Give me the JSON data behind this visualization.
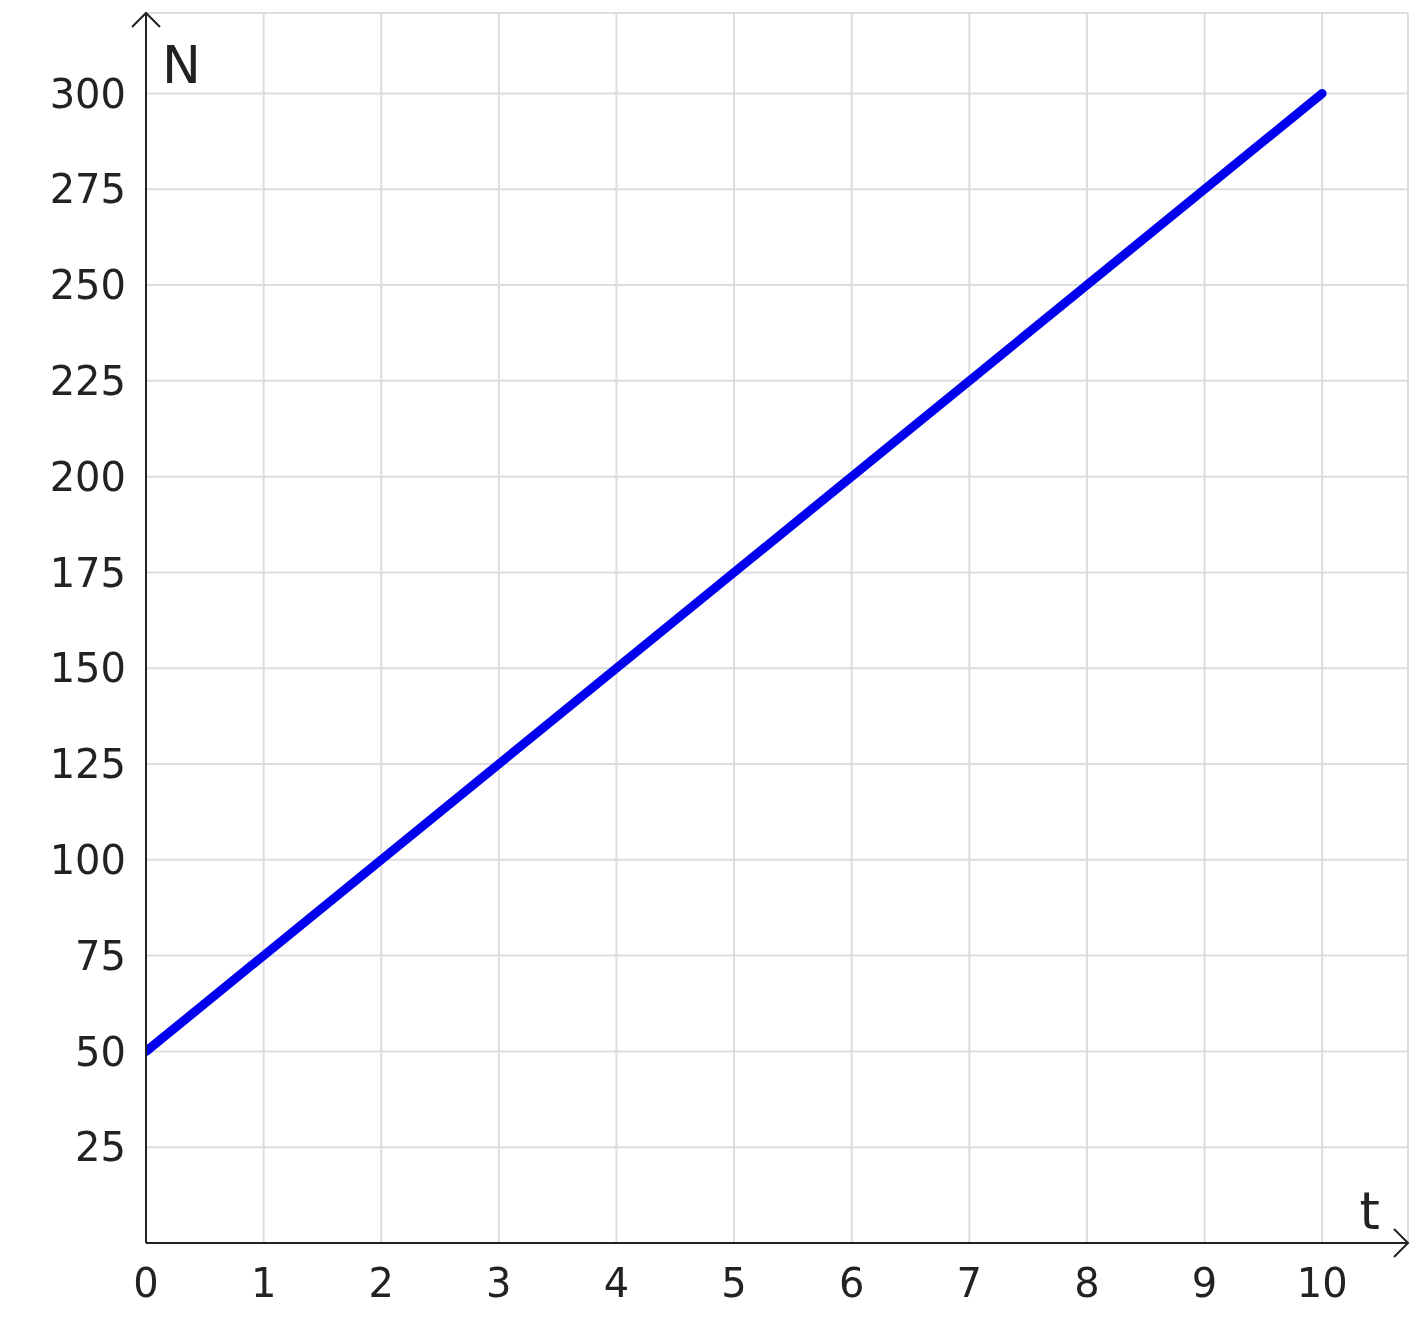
{
  "chart_data": {
    "type": "line",
    "xlabel": "t",
    "ylabel": "N",
    "x": [
      0,
      10
    ],
    "series": [
      {
        "color": "#0000ee",
        "values": [
          50,
          300
        ]
      }
    ],
    "xlim": [
      0,
      10.73
    ],
    "ylim": [
      0,
      321
    ],
    "xticks": [
      0,
      1,
      2,
      3,
      4,
      5,
      6,
      7,
      8,
      9,
      10
    ],
    "yticks": [
      {
        "value": 0,
        "label": null
      },
      25,
      50,
      75,
      100,
      125,
      150,
      175,
      200,
      225,
      250,
      275,
      300
    ],
    "grid": true,
    "marker": "none",
    "line_style": "solid"
  }
}
